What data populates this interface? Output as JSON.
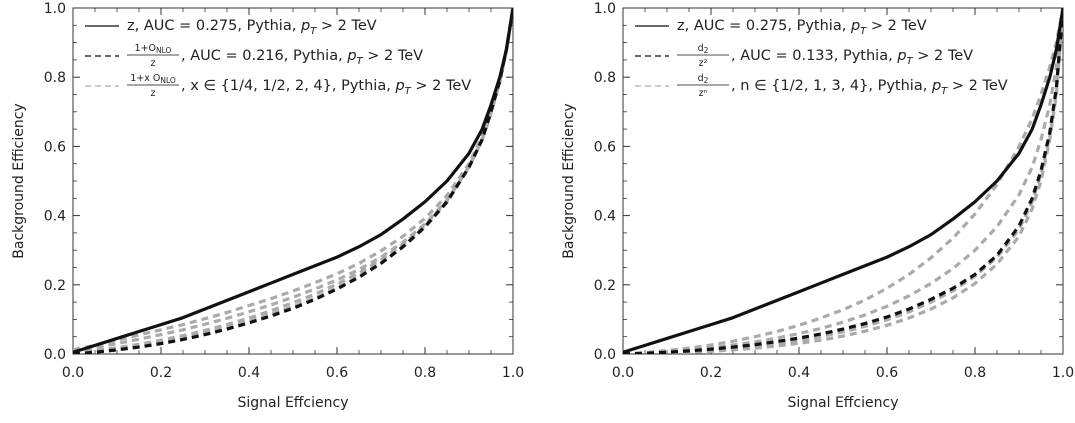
{
  "chart_data": [
    {
      "type": "line",
      "xlabel": "Signal Effciency",
      "ylabel": "Background Efficiency",
      "xlim": [
        0,
        1
      ],
      "ylim": [
        0,
        1
      ],
      "xticks": [
        "0.0",
        "0.2",
        "0.4",
        "0.6",
        "0.8",
        "1.0"
      ],
      "yticks": [
        "0.0",
        "0.2",
        "0.4",
        "0.6",
        "0.8",
        "1.0"
      ],
      "grid": false,
      "legend_position": "top-left",
      "legend": [
        {
          "num": "",
          "den": "",
          "lead": "z",
          "text": ", AUC = 0.275, Pythia, ",
          "pt": "p",
          "ptsub": "T",
          "tail": " > 2 TeV",
          "style": "solid-black"
        },
        {
          "num": "1+O",
          "numsub": "NLO",
          "den": "z",
          "lead": "",
          "text": ", AUC = 0.216, Pythia, ",
          "pt": "p",
          "ptsub": "T",
          "tail": " > 2 TeV",
          "style": "dashed-black"
        },
        {
          "num": "1+x O",
          "numsub": "NLO",
          "den": "z",
          "lead": "",
          "text": ", x ∈ {1/4, 1/2, 2, 4}, Pythia, ",
          "pt": "p",
          "ptsub": "T",
          "tail": " > 2 TeV",
          "style": "dashed-gray"
        }
      ],
      "series": [
        {
          "style": "solid-black",
          "x": [
            0,
            0.05,
            0.1,
            0.15,
            0.2,
            0.25,
            0.3,
            0.35,
            0.4,
            0.45,
            0.5,
            0.55,
            0.6,
            0.65,
            0.7,
            0.75,
            0.8,
            0.85,
            0.9,
            0.93,
            0.95,
            0.97,
            0.985,
            1.0
          ],
          "y": [
            0.005,
            0.025,
            0.045,
            0.065,
            0.085,
            0.105,
            0.13,
            0.155,
            0.18,
            0.205,
            0.23,
            0.255,
            0.28,
            0.31,
            0.345,
            0.39,
            0.44,
            0.5,
            0.58,
            0.65,
            0.72,
            0.8,
            0.88,
            1.0
          ]
        },
        {
          "style": "dashed-black",
          "x": [
            0,
            0.05,
            0.1,
            0.15,
            0.2,
            0.25,
            0.3,
            0.35,
            0.4,
            0.45,
            0.5,
            0.55,
            0.6,
            0.65,
            0.7,
            0.75,
            0.8,
            0.85,
            0.9,
            0.93,
            0.95,
            0.97,
            0.985,
            1.0
          ],
          "y": [
            0.0,
            0.005,
            0.012,
            0.02,
            0.03,
            0.042,
            0.056,
            0.072,
            0.09,
            0.11,
            0.132,
            0.158,
            0.188,
            0.222,
            0.262,
            0.31,
            0.368,
            0.44,
            0.54,
            0.62,
            0.7,
            0.79,
            0.88,
            1.0
          ]
        },
        {
          "style": "dashed-gray",
          "x": [
            0,
            0.05,
            0.1,
            0.15,
            0.2,
            0.25,
            0.3,
            0.35,
            0.4,
            0.45,
            0.5,
            0.55,
            0.6,
            0.65,
            0.7,
            0.75,
            0.8,
            0.85,
            0.9,
            0.93,
            0.95,
            0.97,
            0.985,
            1.0
          ],
          "y": [
            0.012,
            0.025,
            0.04,
            0.055,
            0.07,
            0.085,
            0.102,
            0.12,
            0.14,
            0.16,
            0.182,
            0.206,
            0.232,
            0.262,
            0.298,
            0.34,
            0.392,
            0.458,
            0.55,
            0.63,
            0.7,
            0.79,
            0.88,
            1.0
          ]
        },
        {
          "style": "dashed-gray",
          "x": [
            0,
            0.05,
            0.1,
            0.15,
            0.2,
            0.25,
            0.3,
            0.35,
            0.4,
            0.45,
            0.5,
            0.55,
            0.6,
            0.65,
            0.7,
            0.75,
            0.8,
            0.85,
            0.9,
            0.93,
            0.95,
            0.97,
            0.985,
            1.0
          ],
          "y": [
            0.008,
            0.018,
            0.03,
            0.043,
            0.056,
            0.07,
            0.086,
            0.103,
            0.122,
            0.142,
            0.164,
            0.188,
            0.214,
            0.244,
            0.28,
            0.323,
            0.376,
            0.444,
            0.54,
            0.62,
            0.695,
            0.785,
            0.875,
            1.0
          ]
        },
        {
          "style": "dashed-gray",
          "x": [
            0,
            0.05,
            0.1,
            0.15,
            0.2,
            0.25,
            0.3,
            0.35,
            0.4,
            0.45,
            0.5,
            0.55,
            0.6,
            0.65,
            0.7,
            0.75,
            0.8,
            0.85,
            0.9,
            0.93,
            0.95,
            0.97,
            0.985,
            1.0
          ],
          "y": [
            0.003,
            0.01,
            0.018,
            0.028,
            0.04,
            0.053,
            0.068,
            0.085,
            0.104,
            0.125,
            0.148,
            0.173,
            0.202,
            0.234,
            0.272,
            0.317,
            0.372,
            0.442,
            0.54,
            0.62,
            0.7,
            0.79,
            0.88,
            1.0
          ]
        },
        {
          "style": "dashed-gray",
          "x": [
            0,
            0.05,
            0.1,
            0.15,
            0.2,
            0.25,
            0.3,
            0.35,
            0.4,
            0.45,
            0.5,
            0.55,
            0.6,
            0.65,
            0.7,
            0.75,
            0.8,
            0.85,
            0.9,
            0.93,
            0.95,
            0.97,
            0.985,
            1.0
          ],
          "y": [
            0.002,
            0.008,
            0.015,
            0.024,
            0.035,
            0.047,
            0.061,
            0.077,
            0.095,
            0.115,
            0.137,
            0.162,
            0.191,
            0.224,
            0.263,
            0.309,
            0.366,
            0.438,
            0.54,
            0.62,
            0.7,
            0.79,
            0.88,
            1.0
          ]
        }
      ]
    },
    {
      "type": "line",
      "xlabel": "Signal Effciency",
      "ylabel": "Background Efficiency",
      "xlim": [
        0,
        1
      ],
      "ylim": [
        0,
        1
      ],
      "xticks": [
        "0.0",
        "0.2",
        "0.4",
        "0.6",
        "0.8",
        "1.0"
      ],
      "yticks": [
        "0.0",
        "0.2",
        "0.4",
        "0.6",
        "0.8",
        "1.0"
      ],
      "grid": false,
      "legend_position": "top-left",
      "legend": [
        {
          "num": "",
          "den": "",
          "lead": "z",
          "text": ", AUC = 0.275, Pythia, ",
          "pt": "p",
          "ptsub": "T",
          "tail": " > 2 TeV",
          "style": "solid-black"
        },
        {
          "num": "d",
          "numsub": "2",
          "den": "z²",
          "lead": "",
          "text": ", AUC = 0.133, Pythia, ",
          "pt": "p",
          "ptsub": "T",
          "tail": " > 2 TeV",
          "style": "dashed-black"
        },
        {
          "num": "d",
          "numsub": "2",
          "den": "zⁿ",
          "lead": "",
          "text": ", n ∈ {1/2, 1, 3, 4}, Pythia, ",
          "pt": "p",
          "ptsub": "T",
          "tail": " > 2 TeV",
          "style": "dashed-gray"
        }
      ],
      "series": [
        {
          "style": "solid-black",
          "x": [
            0,
            0.05,
            0.1,
            0.15,
            0.2,
            0.25,
            0.3,
            0.35,
            0.4,
            0.45,
            0.5,
            0.55,
            0.6,
            0.65,
            0.7,
            0.75,
            0.8,
            0.85,
            0.9,
            0.93,
            0.95,
            0.97,
            0.985,
            1.0
          ],
          "y": [
            0.005,
            0.025,
            0.045,
            0.065,
            0.085,
            0.105,
            0.13,
            0.155,
            0.18,
            0.205,
            0.23,
            0.255,
            0.28,
            0.31,
            0.345,
            0.39,
            0.44,
            0.5,
            0.58,
            0.65,
            0.72,
            0.8,
            0.88,
            1.0
          ]
        },
        {
          "style": "dashed-black",
          "x": [
            0,
            0.05,
            0.1,
            0.15,
            0.2,
            0.25,
            0.3,
            0.35,
            0.4,
            0.45,
            0.5,
            0.55,
            0.6,
            0.65,
            0.7,
            0.75,
            0.8,
            0.85,
            0.9,
            0.93,
            0.95,
            0.97,
            0.985,
            1.0
          ],
          "y": [
            0.0,
            0.002,
            0.005,
            0.009,
            0.014,
            0.02,
            0.027,
            0.036,
            0.046,
            0.058,
            0.072,
            0.088,
            0.107,
            0.13,
            0.158,
            0.19,
            0.23,
            0.285,
            0.37,
            0.45,
            0.53,
            0.64,
            0.77,
            1.0
          ]
        },
        {
          "style": "dashed-gray",
          "x": [
            0,
            0.05,
            0.1,
            0.15,
            0.2,
            0.25,
            0.3,
            0.35,
            0.4,
            0.45,
            0.5,
            0.55,
            0.6,
            0.65,
            0.7,
            0.75,
            0.8,
            0.85,
            0.9,
            0.93,
            0.95,
            0.97,
            0.985,
            1.0
          ],
          "y": [
            0.0,
            0.004,
            0.01,
            0.017,
            0.026,
            0.037,
            0.05,
            0.065,
            0.083,
            0.104,
            0.128,
            0.156,
            0.19,
            0.23,
            0.278,
            0.335,
            0.405,
            0.49,
            0.6,
            0.68,
            0.75,
            0.83,
            0.9,
            1.0
          ]
        },
        {
          "style": "dashed-gray",
          "x": [
            0,
            0.05,
            0.1,
            0.15,
            0.2,
            0.25,
            0.3,
            0.35,
            0.4,
            0.45,
            0.5,
            0.55,
            0.6,
            0.65,
            0.7,
            0.75,
            0.8,
            0.85,
            0.9,
            0.93,
            0.95,
            0.97,
            0.985,
            1.0
          ],
          "y": [
            0.0,
            0.003,
            0.007,
            0.012,
            0.018,
            0.026,
            0.035,
            0.046,
            0.059,
            0.074,
            0.092,
            0.113,
            0.138,
            0.168,
            0.204,
            0.247,
            0.3,
            0.368,
            0.46,
            0.54,
            0.62,
            0.72,
            0.83,
            1.0
          ]
        },
        {
          "style": "dashed-gray",
          "x": [
            0,
            0.05,
            0.1,
            0.15,
            0.2,
            0.25,
            0.3,
            0.35,
            0.4,
            0.45,
            0.5,
            0.55,
            0.6,
            0.65,
            0.7,
            0.75,
            0.8,
            0.85,
            0.9,
            0.93,
            0.95,
            0.97,
            0.985,
            1.0
          ],
          "y": [
            0.0,
            0.002,
            0.004,
            0.007,
            0.011,
            0.016,
            0.022,
            0.03,
            0.039,
            0.05,
            0.064,
            0.08,
            0.099,
            0.122,
            0.15,
            0.183,
            0.225,
            0.28,
            0.36,
            0.44,
            0.52,
            0.63,
            0.76,
            1.0
          ]
        },
        {
          "style": "dashed-gray",
          "x": [
            0,
            0.05,
            0.1,
            0.15,
            0.2,
            0.25,
            0.3,
            0.35,
            0.4,
            0.45,
            0.5,
            0.55,
            0.6,
            0.65,
            0.7,
            0.75,
            0.8,
            0.85,
            0.9,
            0.93,
            0.95,
            0.97,
            0.985,
            1.0
          ],
          "y": [
            0.0,
            0.001,
            0.003,
            0.005,
            0.008,
            0.012,
            0.017,
            0.023,
            0.031,
            0.04,
            0.052,
            0.066,
            0.083,
            0.104,
            0.13,
            0.162,
            0.204,
            0.26,
            0.34,
            0.42,
            0.5,
            0.62,
            0.75,
            1.0
          ]
        }
      ]
    }
  ],
  "colors": {
    "black": "#111111",
    "gray": "#aaaaaa",
    "axis": "#333333"
  }
}
